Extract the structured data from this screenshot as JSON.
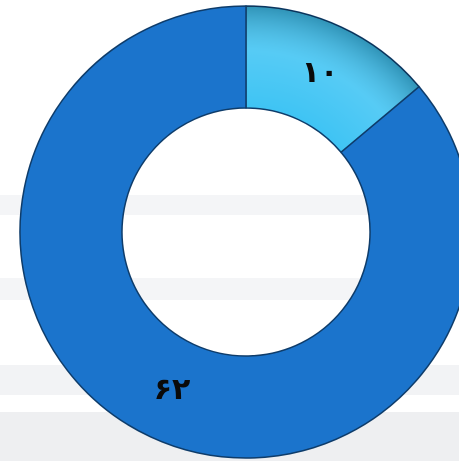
{
  "chart_data": {
    "type": "donut",
    "values": [
      10,
      62
    ],
    "value_labels": [
      "۱۰",
      "۶۲"
    ],
    "colors": [
      "#3fc4f4",
      "#1b74cc"
    ],
    "start_angle": 0,
    "direction": "clockwise"
  }
}
